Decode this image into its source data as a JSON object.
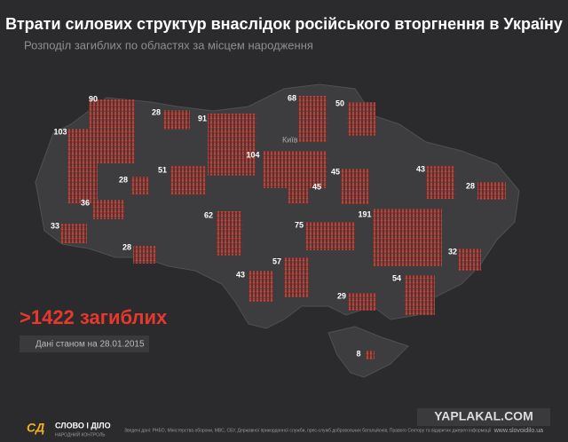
{
  "header": {
    "title": "Втрати силових структур внаслідок російського вторгнення в Україну",
    "subtitle": "Розподіл загиблих по областях за місцем народження"
  },
  "regions": [
    90,
    28,
    91,
    68,
    50,
    103,
    104,
    45,
    43,
    51,
    28,
    45,
    28,
    36,
    62,
    191,
    33,
    75,
    28,
    32,
    57,
    43,
    54,
    29,
    8
  ],
  "city": "Київ",
  "total": ">1422 загиблих",
  "date": "Дані станом на 28.01.2015",
  "footer": {
    "logo": "СЛОВО І ДІЛО",
    "logo_sub": "НАРОДНИЙ КОНТРОЛЬ",
    "sources": "Зведені дані: РНБО, Міністерства оборони, МВС, СБУ, Державної прикордонної служби, прес-служб добровольчих батальйонів, Правого Сектору та відкритих джерел інформації",
    "site": "www.slovoidilo.ua"
  },
  "watermark": "YAPLAKAL.COM"
}
